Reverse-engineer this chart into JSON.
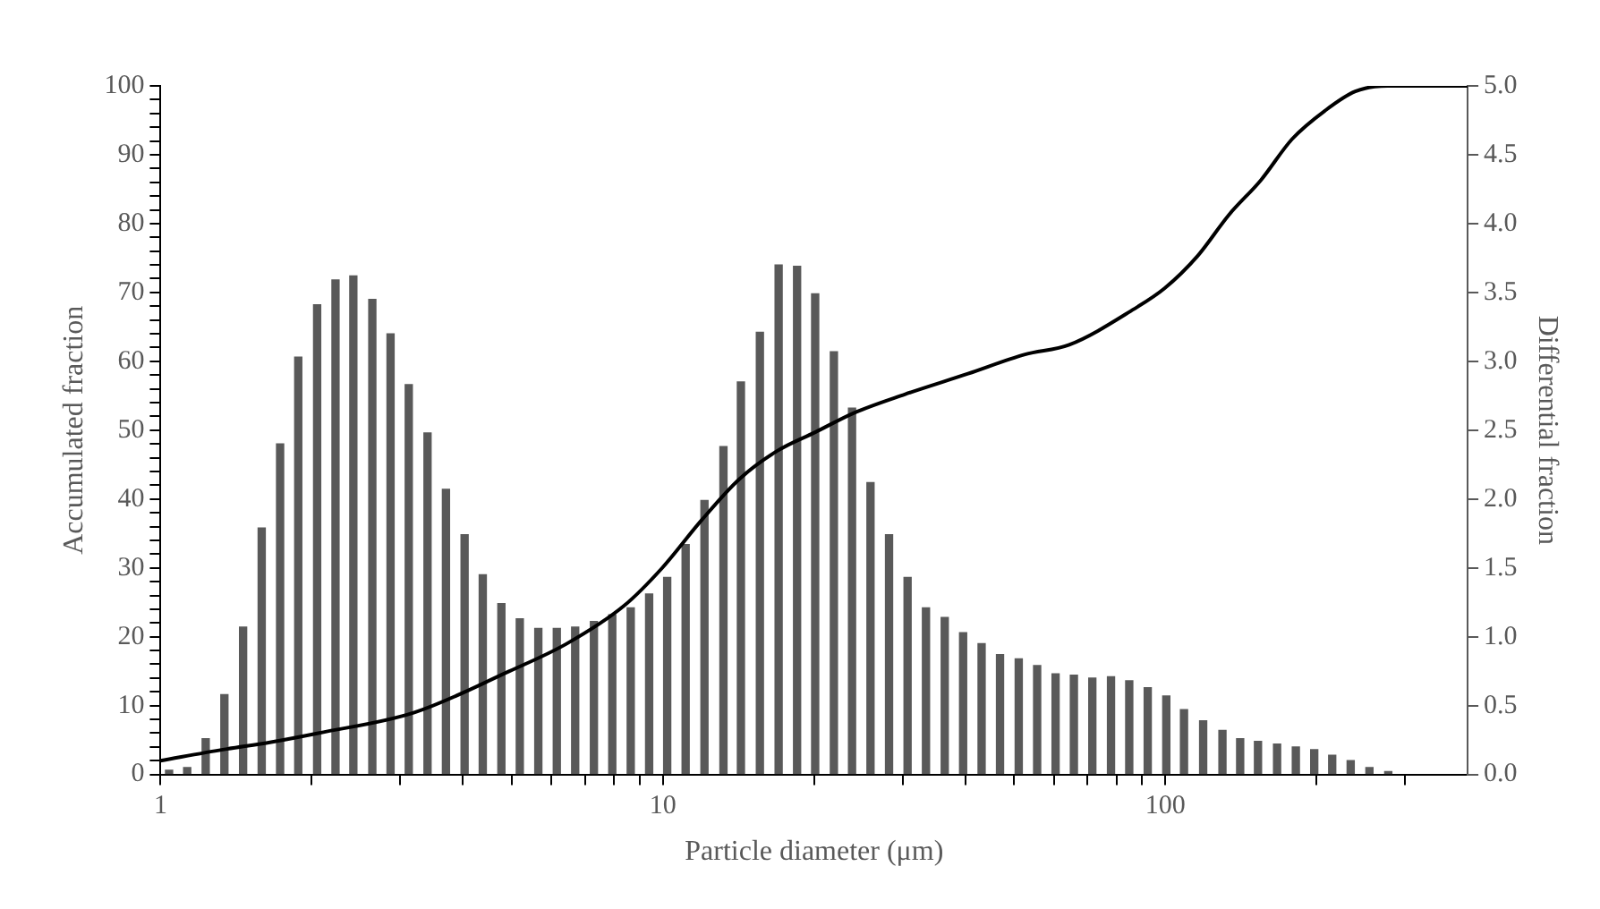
{
  "chart_data": {
    "type": "bar",
    "xlabel": "Particle diameter (μm)",
    "ylabel": "Accumulated fraction",
    "y2label": "Differential fraction",
    "log": "x",
    "grid": false,
    "legend": false,
    "marker": "none",
    "xlim": [
      1,
      400
    ],
    "xticks": [
      1,
      {
        "value": 2,
        "label": null
      },
      {
        "value": 3,
        "label": null
      },
      {
        "value": 4,
        "label": null
      },
      {
        "value": 5,
        "label": null
      },
      {
        "value": 6,
        "label": null
      },
      {
        "value": 7,
        "label": null
      },
      {
        "value": 8,
        "label": null
      },
      {
        "value": 9,
        "label": null
      },
      10,
      {
        "value": 20,
        "label": null
      },
      {
        "value": 30,
        "label": null
      },
      {
        "value": 40,
        "label": null
      },
      {
        "value": 50,
        "label": null
      },
      {
        "value": 60,
        "label": null
      },
      {
        "value": 70,
        "label": null
      },
      {
        "value": 80,
        "label": null
      },
      {
        "value": 90,
        "label": null
      },
      100,
      {
        "value": 200,
        "label": null
      },
      {
        "value": 300,
        "label": null
      }
    ],
    "ylim": [
      0,
      100
    ],
    "yticks": [
      0,
      {
        "value": 2,
        "label": null
      },
      {
        "value": 4,
        "label": null
      },
      {
        "value": 6,
        "label": null
      },
      {
        "value": 8,
        "label": null
      },
      10,
      {
        "value": 12,
        "label": null
      },
      {
        "value": 14,
        "label": null
      },
      {
        "value": 16,
        "label": null
      },
      {
        "value": 18,
        "label": null
      },
      20,
      {
        "value": 22,
        "label": null
      },
      {
        "value": 24,
        "label": null
      },
      {
        "value": 26,
        "label": null
      },
      {
        "value": 28,
        "label": null
      },
      30,
      {
        "value": 32,
        "label": null
      },
      {
        "value": 34,
        "label": null
      },
      {
        "value": 36,
        "label": null
      },
      {
        "value": 38,
        "label": null
      },
      40,
      {
        "value": 42,
        "label": null
      },
      {
        "value": 44,
        "label": null
      },
      {
        "value": 46,
        "label": null
      },
      {
        "value": 48,
        "label": null
      },
      50,
      {
        "value": 52,
        "label": null
      },
      {
        "value": 54,
        "label": null
      },
      {
        "value": 56,
        "label": null
      },
      {
        "value": 58,
        "label": null
      },
      60,
      {
        "value": 62,
        "label": null
      },
      {
        "value": 64,
        "label": null
      },
      {
        "value": 66,
        "label": null
      },
      {
        "value": 68,
        "label": null
      },
      70,
      {
        "value": 72,
        "label": null
      },
      {
        "value": 74,
        "label": null
      },
      {
        "value": 76,
        "label": null
      },
      {
        "value": 78,
        "label": null
      },
      80,
      {
        "value": 82,
        "label": null
      },
      {
        "value": 84,
        "label": null
      },
      {
        "value": 86,
        "label": null
      },
      {
        "value": 88,
        "label": null
      },
      90,
      {
        "value": 92,
        "label": null
      },
      {
        "value": 94,
        "label": null
      },
      {
        "value": 96,
        "label": null
      },
      {
        "value": 98,
        "label": null
      },
      100
    ],
    "y2lim": [
      0,
      5
    ],
    "y2ticks": [
      {
        "value": 0,
        "label": "0.0"
      },
      {
        "value": 0.5,
        "label": "0.5"
      },
      {
        "value": 1,
        "label": "1.0"
      },
      {
        "value": 1.5,
        "label": "1.5"
      },
      {
        "value": 2,
        "label": "2.0"
      },
      {
        "value": 2.5,
        "label": "2.5"
      },
      {
        "value": 3,
        "label": "3.0"
      },
      {
        "value": 3.5,
        "label": "3.5"
      },
      {
        "value": 4,
        "label": "4.0"
      },
      {
        "value": 4.5,
        "label": "4.5"
      },
      {
        "value": 5,
        "label": "5.0"
      }
    ],
    "series": [
      {
        "axis": "y2",
        "color": "#595959",
        "x": [
          1.04,
          1.13,
          1.23,
          1.34,
          1.46,
          1.59,
          1.73,
          1.88,
          2.05,
          2.23,
          2.42,
          2.64,
          2.87,
          3.12,
          3.4,
          3.7,
          4.03,
          4.38,
          4.77,
          5.19,
          5.65,
          6.15,
          6.69,
          7.29,
          7.93,
          8.63,
          9.39,
          10.2,
          11.1,
          12.1,
          13.2,
          14.3,
          15.6,
          17,
          18.5,
          20.1,
          21.9,
          23.8,
          25.9,
          28.2,
          30.7,
          33.4,
          36.4,
          39.6,
          43.1,
          46.9,
          51.1,
          55.6,
          60.5,
          65.8,
          71.6,
          78,
          84.8,
          92.3,
          100.5,
          109,
          119,
          130,
          141,
          153,
          167,
          182,
          198,
          215,
          234,
          255,
          278
        ],
        "values": [
          0.03,
          0.05,
          0.26,
          0.58,
          1.07,
          1.79,
          2.4,
          3.03,
          3.41,
          3.59,
          3.62,
          3.45,
          3.2,
          2.83,
          2.48,
          2.07,
          1.74,
          1.45,
          1.24,
          1.13,
          1.06,
          1.06,
          1.07,
          1.11,
          1.16,
          1.21,
          1.31,
          1.43,
          1.67,
          1.99,
          2.38,
          2.85,
          3.21,
          3.7,
          3.69,
          3.49,
          3.07,
          2.66,
          2.12,
          1.74,
          1.43,
          1.21,
          1.14,
          1.03,
          0.95,
          0.87,
          0.84,
          0.79,
          0.73,
          0.72,
          0.7,
          0.71,
          0.68,
          0.63,
          0.57,
          0.47,
          0.39,
          0.32,
          0.26,
          0.24,
          0.22,
          0.2,
          0.18,
          0.14,
          0.1,
          0.05,
          0.02
        ]
      },
      {
        "type": "line",
        "color": "#000000",
        "x": [
          1,
          1.33,
          1.66,
          2.06,
          3.2,
          4.95,
          6.44,
          8.37,
          9.97,
          11.9,
          14.2,
          16.9,
          20.1,
          24,
          30.3,
          40.5,
          52.6,
          64.4,
          86.7,
          99.7,
          116,
          134,
          155,
          179,
          208,
          239,
          277,
          400
        ],
        "values": [
          2,
          3.6,
          4.7,
          6,
          9,
          15,
          19,
          24.5,
          30,
          36.8,
          42.9,
          47,
          49.7,
          52.5,
          55.2,
          58.2,
          61,
          62.4,
          67.6,
          70.6,
          75.3,
          81.3,
          86.3,
          92.3,
          96.4,
          99.2,
          100,
          100
        ]
      }
    ]
  }
}
